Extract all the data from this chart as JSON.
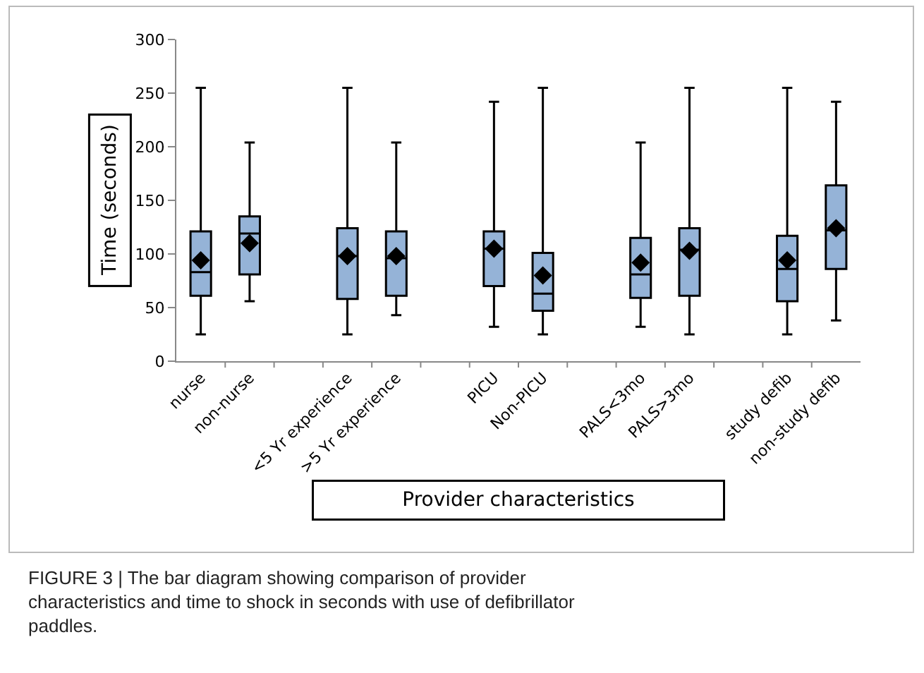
{
  "chart_data": {
    "type": "box",
    "xlabel": "Provider characteristics",
    "ylabel": "Time (seconds)",
    "categories": [
      "nurse",
      "non-nurse",
      null,
      "<5 Yr experience",
      ">5 Yr experience",
      null,
      "PICU",
      "Non-PICU",
      null,
      "PALS<3mo",
      "PALS>3mo",
      null,
      "study defib",
      "non-study defib"
    ],
    "color": "#95b3d7",
    "boxes": [
      {
        "low": 25,
        "q1": 61,
        "median": 83,
        "q3": 121,
        "high": 255,
        "mean": 94
      },
      {
        "low": 56,
        "q1": 81,
        "median": 119,
        "q3": 135,
        "high": 204,
        "mean": 110
      },
      null,
      {
        "low": 25,
        "q1": 58,
        "median": 98,
        "q3": 124,
        "high": 255,
        "mean": 98
      },
      {
        "low": 43,
        "q1": 61,
        "median": 96,
        "q3": 121,
        "high": 204,
        "mean": 98
      },
      null,
      {
        "low": 32,
        "q1": 70,
        "median": 105,
        "q3": 121,
        "high": 242,
        "mean": 105
      },
      {
        "low": 25,
        "q1": 47,
        "median": 63,
        "q3": 101,
        "high": 255,
        "mean": 80
      },
      null,
      {
        "low": 32,
        "q1": 59,
        "median": 81,
        "q3": 115,
        "high": 204,
        "mean": 92
      },
      {
        "low": 25,
        "q1": 61,
        "median": 104,
        "q3": 124,
        "high": 255,
        "mean": 103
      },
      null,
      {
        "low": 25,
        "q1": 56,
        "median": 86,
        "q3": 117,
        "high": 255,
        "mean": 94
      },
      {
        "low": 38,
        "q1": 86,
        "median": 122,
        "q3": 164,
        "high": 242,
        "mean": 124
      }
    ],
    "ylim": [
      0,
      300
    ],
    "yticks": [
      0,
      50,
      100,
      150,
      200,
      250,
      300
    ],
    "grid": false,
    "annotations": [
      "FIGURE 3 | The bar diagram showing comparison of provider characteristics and time to shock in seconds with use of defibrillator paddles."
    ]
  }
}
